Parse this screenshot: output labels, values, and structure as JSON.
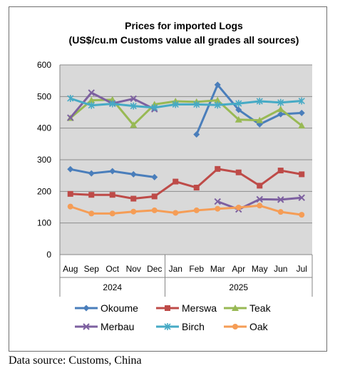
{
  "chart_data": {
    "type": "line",
    "title": "Prices for imported Logs",
    "subtitle": "(US$/cu.m Customs value all grades all sources)",
    "categories": [
      "Aug",
      "Sep",
      "Oct",
      "Nov",
      "Dec",
      "Jan",
      "Feb",
      "Mar",
      "Apr",
      "May",
      "Jun",
      "Jul"
    ],
    "year_groups": [
      {
        "label": "2024",
        "start": 0,
        "end": 4
      },
      {
        "label": "2025",
        "start": 5,
        "end": 11
      }
    ],
    "ylim": [
      0,
      600
    ],
    "yticks": [
      0,
      100,
      200,
      300,
      400,
      500,
      600
    ],
    "grid": true,
    "legend_position": "bottom",
    "series": [
      {
        "name": "Okoume",
        "color": "#4a7ebb",
        "marker": "diamond",
        "values": [
          270,
          257,
          264,
          254,
          245,
          null,
          380,
          537,
          458,
          412,
          444,
          448
        ]
      },
      {
        "name": "Merswa",
        "color": "#be4b48",
        "marker": "square",
        "values": [
          192,
          189,
          189,
          177,
          184,
          231,
          212,
          271,
          260,
          218,
          266,
          254
        ]
      },
      {
        "name": "Teak",
        "color": "#98b954",
        "marker": "triangle",
        "values": [
          432,
          488,
          490,
          410,
          475,
          485,
          483,
          488,
          427,
          425,
          460,
          408
        ]
      },
      {
        "name": "Merbau",
        "color": "#7d60a0",
        "marker": "x",
        "values": [
          433,
          512,
          478,
          493,
          460,
          null,
          null,
          168,
          143,
          175,
          174,
          180
        ]
      },
      {
        "name": "Birch",
        "color": "#46aac5",
        "marker": "star",
        "values": [
          494,
          472,
          477,
          470,
          465,
          475,
          475,
          473,
          478,
          485,
          481,
          486
        ]
      },
      {
        "name": "Oak",
        "color": "#f59d56",
        "marker": "circle",
        "values": [
          152,
          130,
          130,
          136,
          140,
          132,
          140,
          145,
          149,
          155,
          135,
          126
        ]
      }
    ]
  },
  "source_note": "Data source: Customs, China"
}
